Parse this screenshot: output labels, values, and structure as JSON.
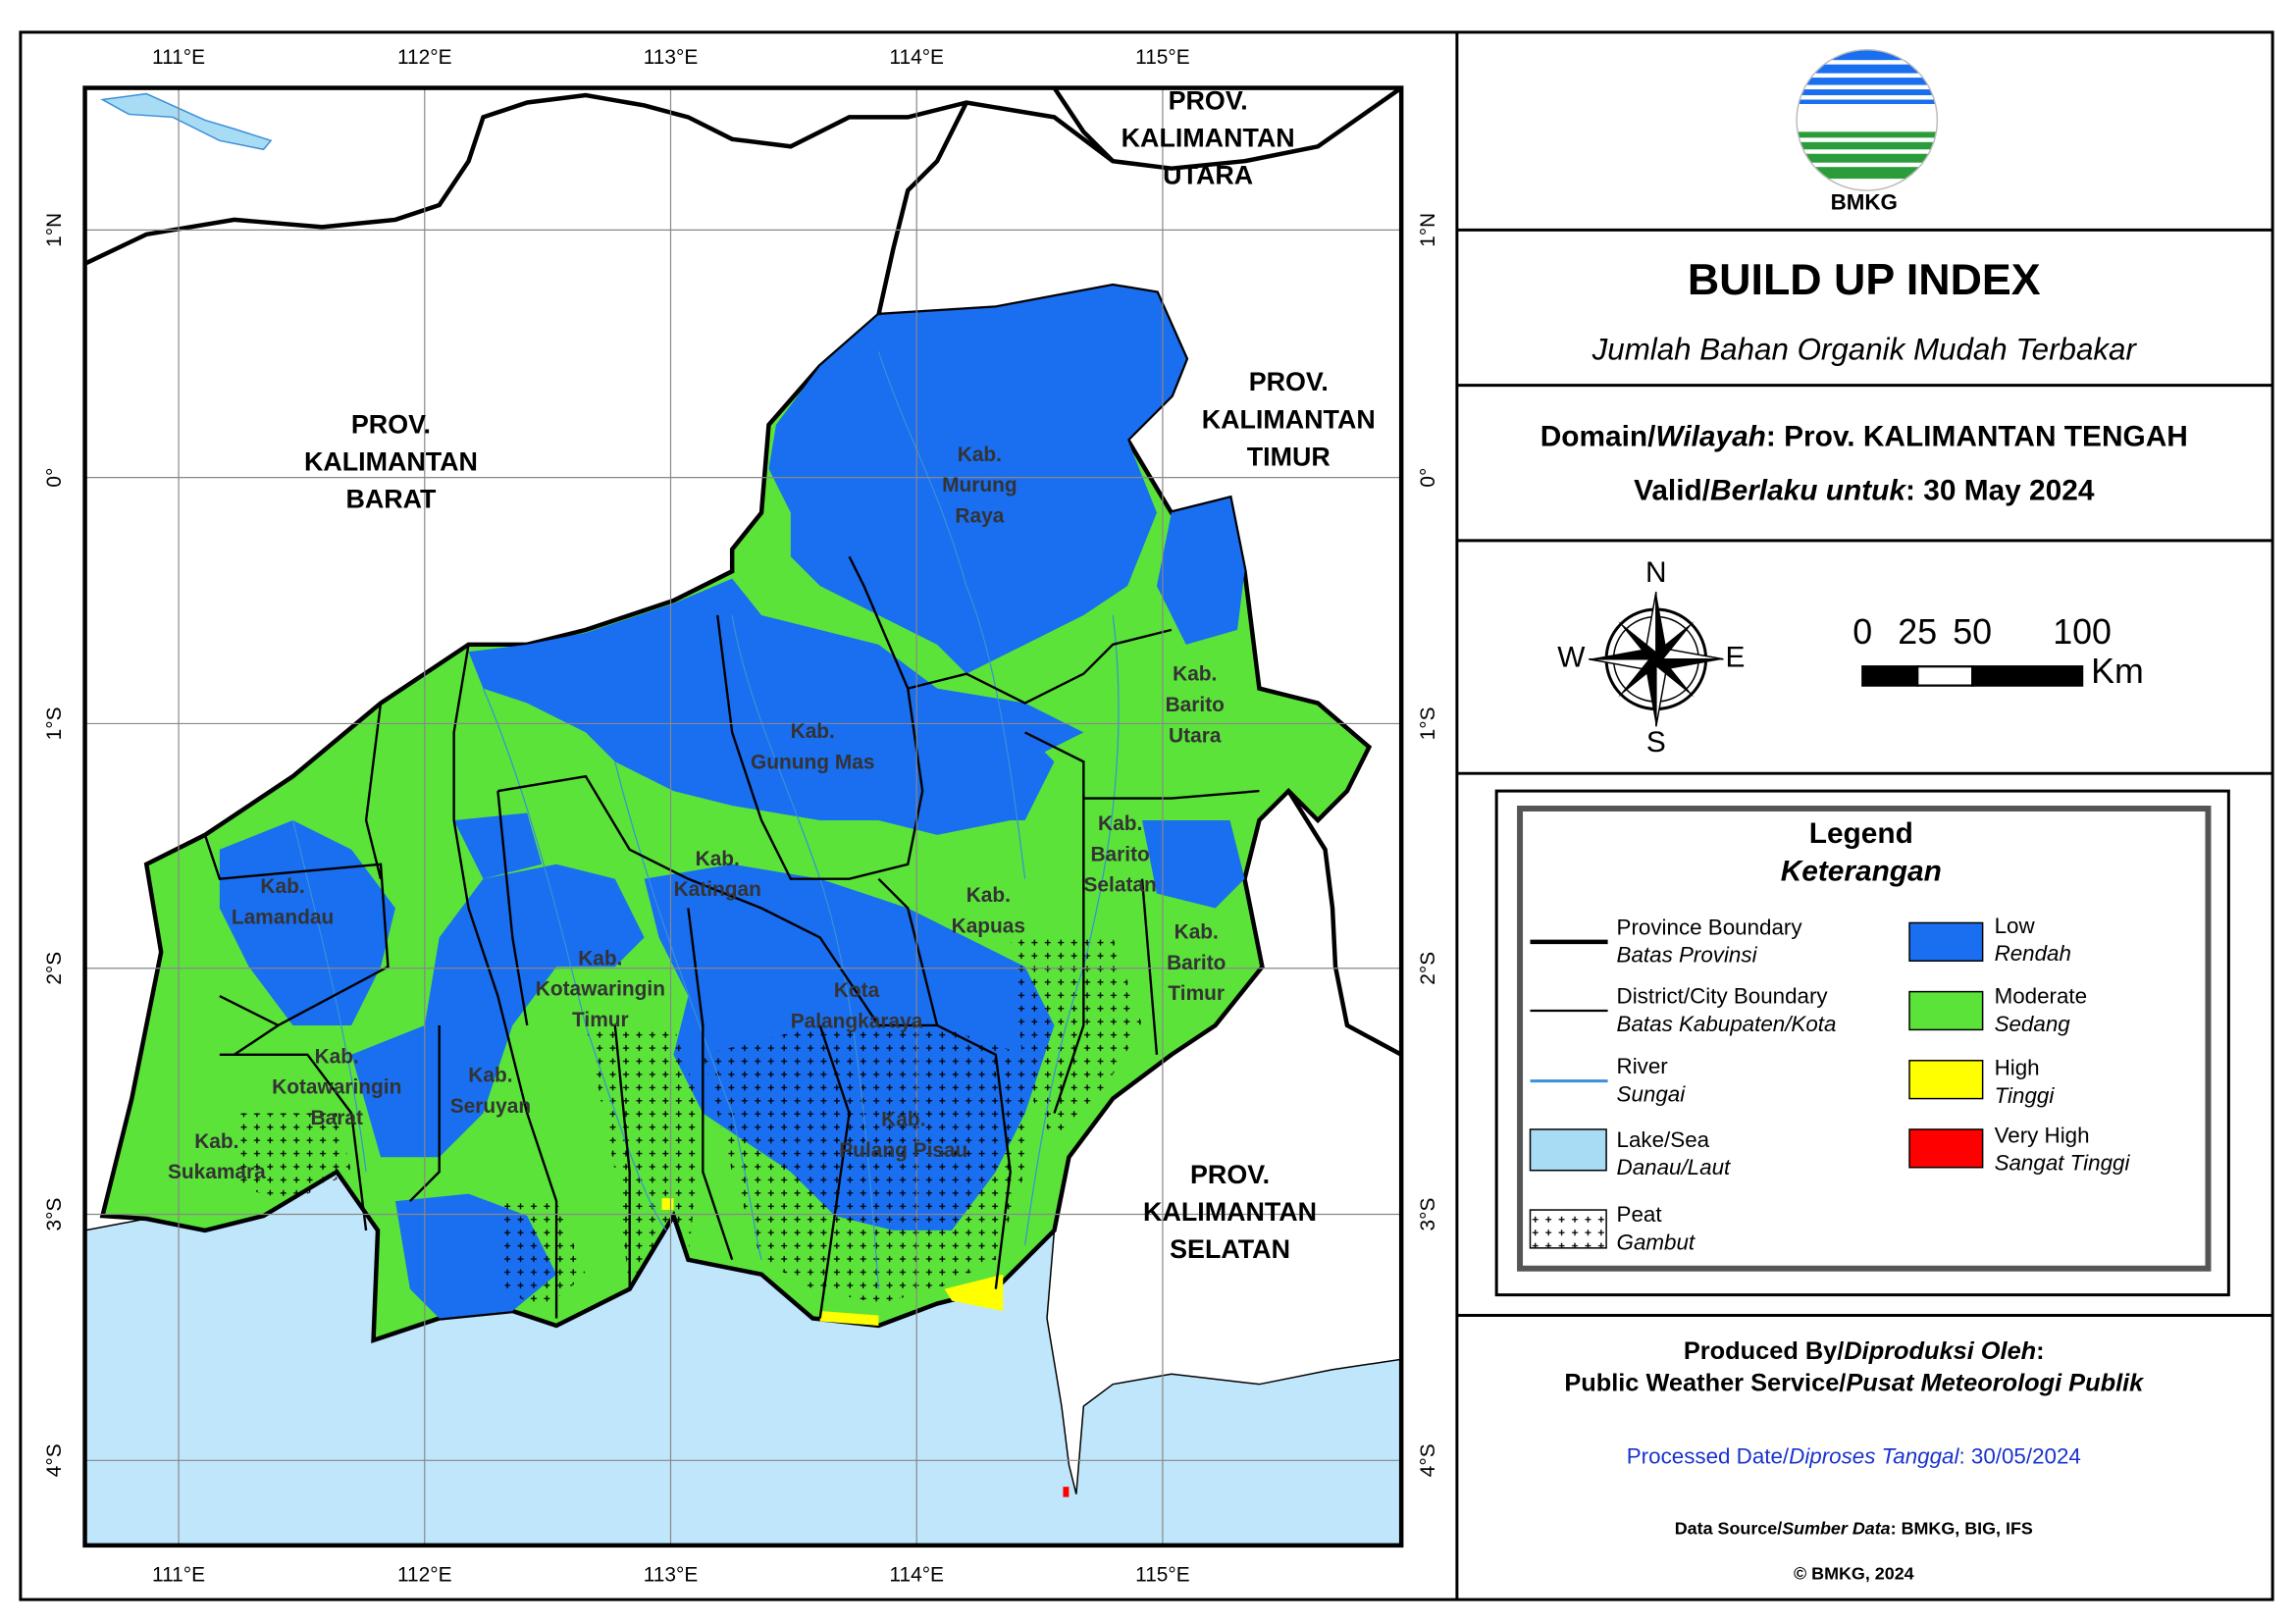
{
  "map": {
    "x_labels": [
      "111°E",
      "112°E",
      "113°E",
      "114°E",
      "115°E"
    ],
    "y_labels": [
      "1°N",
      "0°",
      "1°S",
      "2°S",
      "3°S",
      "4°S"
    ],
    "province_labels": [
      [
        "PROV.",
        "KALIMANTAN",
        "UTARA"
      ],
      [
        "PROV.",
        "KALIMANTAN",
        "BARAT"
      ],
      [
        "PROV.",
        "KALIMANTAN",
        "TIMUR"
      ],
      [
        "PROV.",
        "KALIMANTAN",
        "SELATAN"
      ]
    ],
    "district_labels": [
      [
        "Kab.",
        "Murung",
        "Raya"
      ],
      [
        "Kab.",
        "Barito",
        "Utara"
      ],
      [
        "Kab.",
        "Gunung Mas"
      ],
      [
        "Kab.",
        "Katingan"
      ],
      [
        "Kab.",
        "Lamandau"
      ],
      [
        "Kab.",
        "Kapuas"
      ],
      [
        "Kab.",
        "Barito",
        "Selatan"
      ],
      [
        "Kab.",
        "Barito",
        "Timur"
      ],
      [
        "Kab.",
        "Kotawaringin",
        "Timur"
      ],
      [
        "Kota",
        "Palangkaraya"
      ],
      [
        "Kab.",
        "Kotawaringin",
        "Barat"
      ],
      [
        "Kab.",
        "Seruyan"
      ],
      [
        "Kab.",
        "Sukamara"
      ],
      [
        "Kab.",
        "Pulang Pisau"
      ]
    ]
  },
  "header": {
    "logo_text": "BMKG",
    "title": "BUILD UP INDEX",
    "subtitle": "Jumlah Bahan Organik Mudah Terbakar",
    "domain": {
      "label": "Domain/",
      "label_id": "Wilayah",
      "value": ": Prov. KALIMANTAN TENGAH"
    },
    "valid": {
      "label": "Valid/",
      "label_id": "Berlaku untuk",
      "value": ": 30 May 2024"
    }
  },
  "compass": {
    "n": "N",
    "s": "S",
    "e": "E",
    "w": "W"
  },
  "scale": {
    "ticks": [
      0,
      25,
      50,
      100
    ],
    "unit": "Km"
  },
  "legend": {
    "title": "Legend",
    "subtitle": "Keterangan",
    "items": [
      {
        "label": "Province Boundary",
        "label_id": "Batas Provinsi"
      },
      {
        "label": "District/City Boundary",
        "label_id": "Batas Kabupaten/Kota"
      },
      {
        "label": "River",
        "label_id": "Sungai"
      },
      {
        "label": "Lake/Sea",
        "label_id": "Danau/Laut"
      },
      {
        "label": "Peat",
        "label_id": "Gambut"
      },
      {
        "label": "Low",
        "label_id": "Rendah"
      },
      {
        "label": "Moderate",
        "label_id": "Sedang"
      },
      {
        "label": "High",
        "label_id": "Tinggi"
      },
      {
        "label": "Very High",
        "label_id": "Sangat Tinggi"
      }
    ]
  },
  "footer": {
    "produced": {
      "label": "Produced By/",
      "label_id": "Diproduksi Oleh",
      "suffix": ":"
    },
    "producer": {
      "label": "Public Weather Service/",
      "label_id": "Pusat Meteorologi Publik"
    },
    "processed": {
      "label": "Processed Date/",
      "label_id": "Diproses Tanggal",
      "value": ": 30/05/2024"
    },
    "source": {
      "label": "Data Source/",
      "label_id": "Sumber Data",
      "value": ": BMKG, BIG, IFS"
    },
    "copyright": "© BMKG, 2024"
  }
}
